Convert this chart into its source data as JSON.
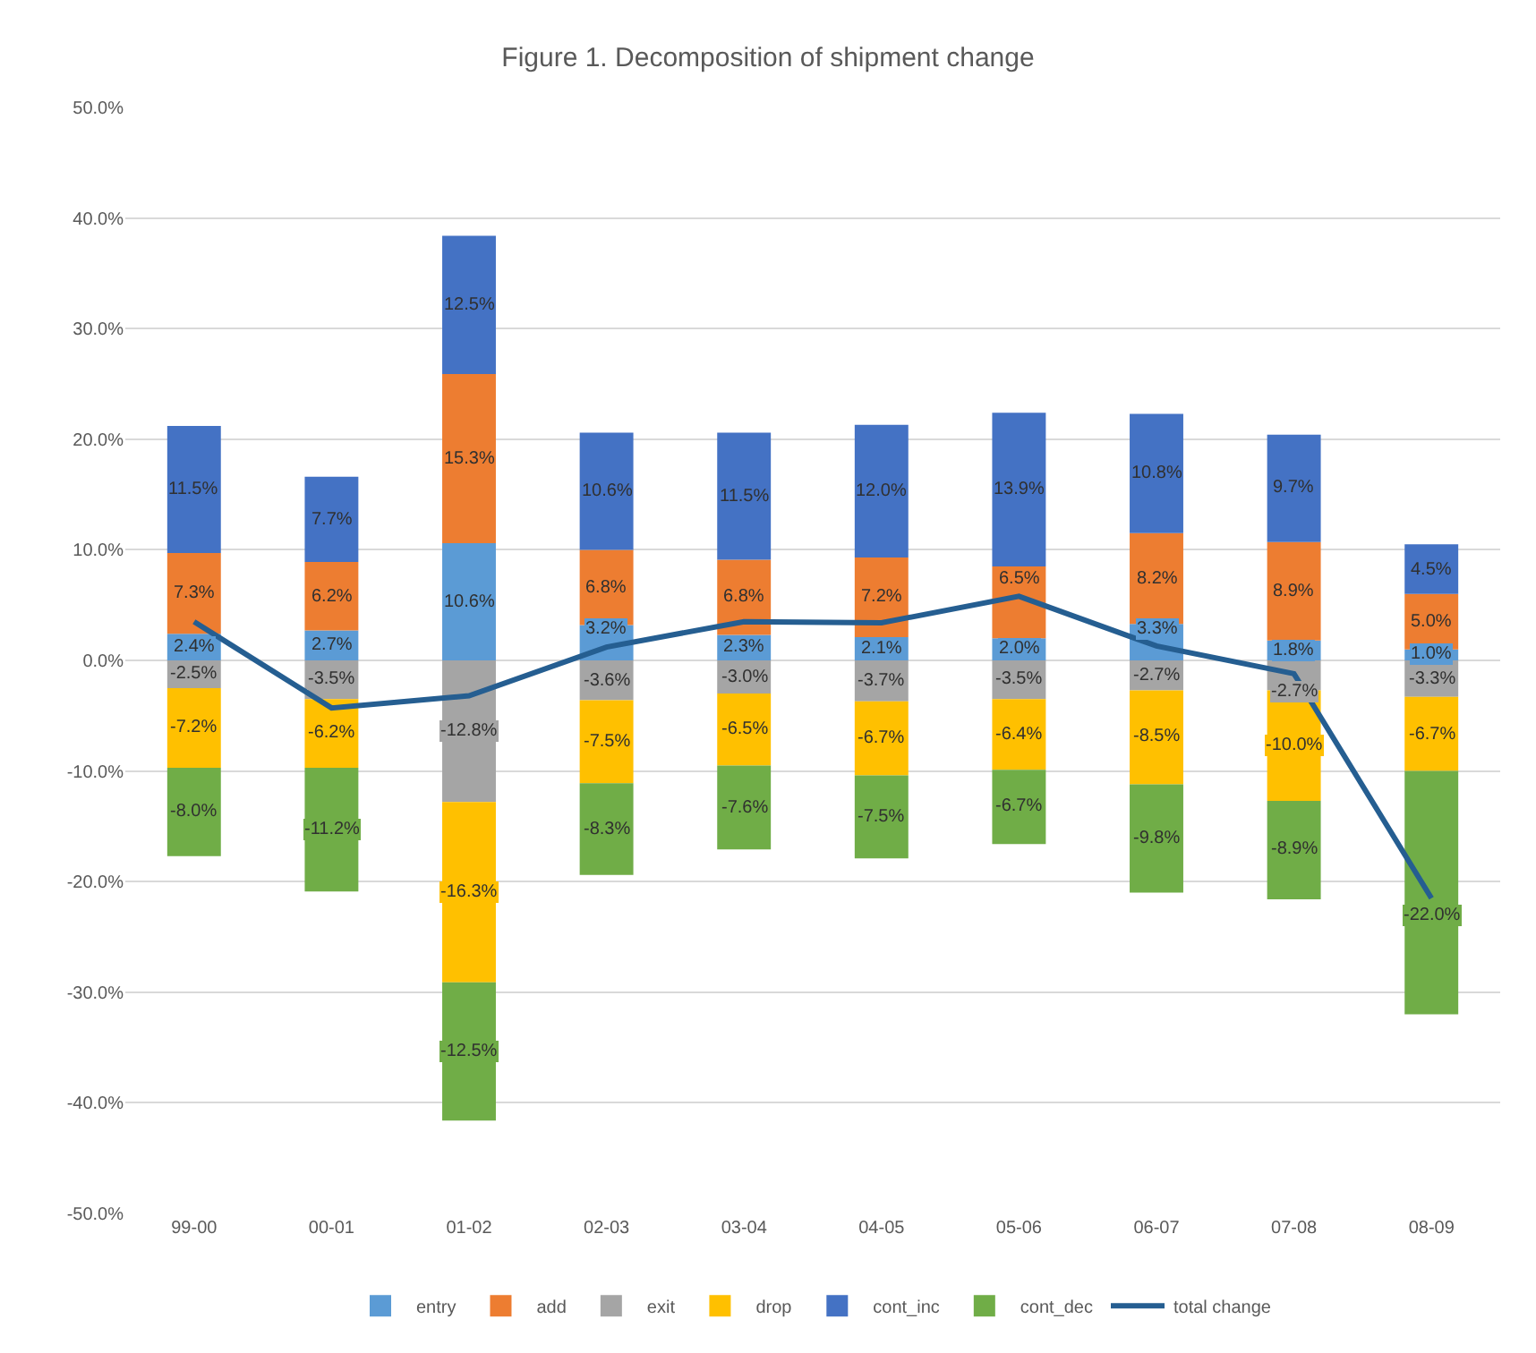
{
  "chart_data": {
    "type": "bar",
    "title": "Figure 1. Decomposition of shipment change",
    "stacked": true,
    "categories": [
      "99-00",
      "00-01",
      "01-02",
      "02-03",
      "03-04",
      "04-05",
      "05-06",
      "06-07",
      "07-08",
      "08-09"
    ],
    "series": [
      {
        "name": "entry",
        "color": "#5b9bd5",
        "values": [
          2.4,
          2.7,
          10.6,
          3.2,
          2.3,
          2.1,
          2.0,
          3.3,
          1.8,
          1.0
        ],
        "value_labels": [
          "2.4%",
          "2.7%",
          "10.6%",
          "3.2%",
          "2.3%",
          "2.1%",
          "2.0%",
          "3.3%",
          "1.8%",
          "1.0%"
        ]
      },
      {
        "name": "add",
        "color": "#ed7d31",
        "values": [
          7.3,
          6.2,
          15.3,
          6.8,
          6.8,
          7.2,
          6.5,
          8.2,
          8.9,
          5.0
        ],
        "value_labels": [
          "7.3%",
          "6.2%",
          "15.3%",
          "6.8%",
          "6.8%",
          "7.2%",
          "6.5%",
          "8.2%",
          "8.9%",
          "5.0%"
        ]
      },
      {
        "name": "exit",
        "color": "#a5a5a5",
        "values": [
          -2.5,
          -3.5,
          -12.8,
          -3.6,
          -3.0,
          -3.7,
          -3.5,
          -2.7,
          -2.7,
          -3.3
        ],
        "value_labels": [
          "-2.5%",
          "-3.5%",
          "-12.8%",
          "-3.6%",
          "-3.0%",
          "-3.7%",
          "-3.5%",
          "-2.7%",
          "-2.7%",
          "-3.3%"
        ]
      },
      {
        "name": "drop",
        "color": "#ffc000",
        "values": [
          -7.2,
          -6.2,
          -16.3,
          -7.5,
          -6.5,
          -6.7,
          -6.4,
          -8.5,
          -10.0,
          -6.7
        ],
        "value_labels": [
          "-7.2%",
          "-6.2%",
          "-16.3%",
          "-7.5%",
          "-6.5%",
          "-6.7%",
          "-6.4%",
          "-8.5%",
          "-10.0%",
          "-6.7%"
        ]
      },
      {
        "name": "cont_inc",
        "color": "#4472c4",
        "values": [
          11.5,
          7.7,
          12.5,
          10.6,
          11.5,
          12.0,
          13.9,
          10.8,
          9.7,
          4.5
        ],
        "value_labels": [
          "11.5%",
          "7.7%",
          "12.5%",
          "10.6%",
          "11.5%",
          "12.0%",
          "13.9%",
          "10.8%",
          "9.7%",
          "4.5%"
        ]
      },
      {
        "name": "cont_dec",
        "color": "#70ad47",
        "values": [
          -8.0,
          -11.2,
          -12.5,
          -8.3,
          -7.6,
          -7.5,
          -6.7,
          -9.8,
          -8.9,
          -22.0
        ],
        "value_labels": [
          "-8.0%",
          "-11.2%",
          "-12.5%",
          "-8.3%",
          "-7.6%",
          "-7.5%",
          "-6.7%",
          "-9.8%",
          "-8.9%",
          "-22.0%"
        ]
      },
      {
        "name": "total change",
        "type": "line",
        "color": "#255e91",
        "values": [
          3.5,
          -4.3,
          -3.2,
          1.2,
          3.5,
          3.4,
          5.8,
          1.3,
          -1.2,
          -21.5
        ]
      }
    ],
    "ylim": [
      -50,
      50
    ],
    "yticks": [
      {
        "value": -50,
        "label": "-50.0%"
      },
      {
        "value": -40,
        "label": "-40.0%"
      },
      {
        "value": -30,
        "label": "-30.0%"
      },
      {
        "value": -20,
        "label": "-20.0%"
      },
      {
        "value": -10,
        "label": "-10.0%"
      },
      {
        "value": 0,
        "label": "0.0%"
      },
      {
        "value": 10,
        "label": "10.0%"
      },
      {
        "value": 20,
        "label": "20.0%"
      },
      {
        "value": 30,
        "label": "30.0%"
      },
      {
        "value": 40,
        "label": "40.0%"
      },
      {
        "value": 50,
        "label": "50.0%"
      }
    ],
    "grid": "y",
    "legend": "bottom",
    "marker": "none",
    "line_style": "solid"
  }
}
